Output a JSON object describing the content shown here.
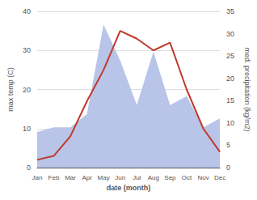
{
  "chart_data": {
    "type": "line",
    "categories": [
      "Jan",
      "Feb",
      "Mar",
      "Apr",
      "May",
      "Jun",
      "Jul",
      "Aug",
      "Sep",
      "Oct",
      "Nov",
      "Dec"
    ],
    "xlabel": "date (month)",
    "ylabel": "max temp (C)",
    "y2label": "med. precipitation (kg/m2)",
    "series": [
      {
        "type": "area",
        "axis": "y2",
        "color": "#b8c4e8",
        "values": [
          8,
          9,
          9,
          12,
          32,
          24,
          14,
          26,
          14,
          16,
          9,
          11
        ]
      },
      {
        "type": "line",
        "color": "#c0392b",
        "values": [
          2,
          3,
          8,
          17,
          25,
          35,
          33,
          30,
          32,
          20,
          10,
          4
        ]
      }
    ],
    "ylim": [
      0,
      40
    ],
    "yticks": [
      0,
      10,
      20,
      30,
      40
    ],
    "y2lim": [
      0,
      35
    ],
    "y2ticks": [
      0,
      5,
      10,
      15,
      20,
      25,
      30,
      35
    ],
    "grid": true
  }
}
